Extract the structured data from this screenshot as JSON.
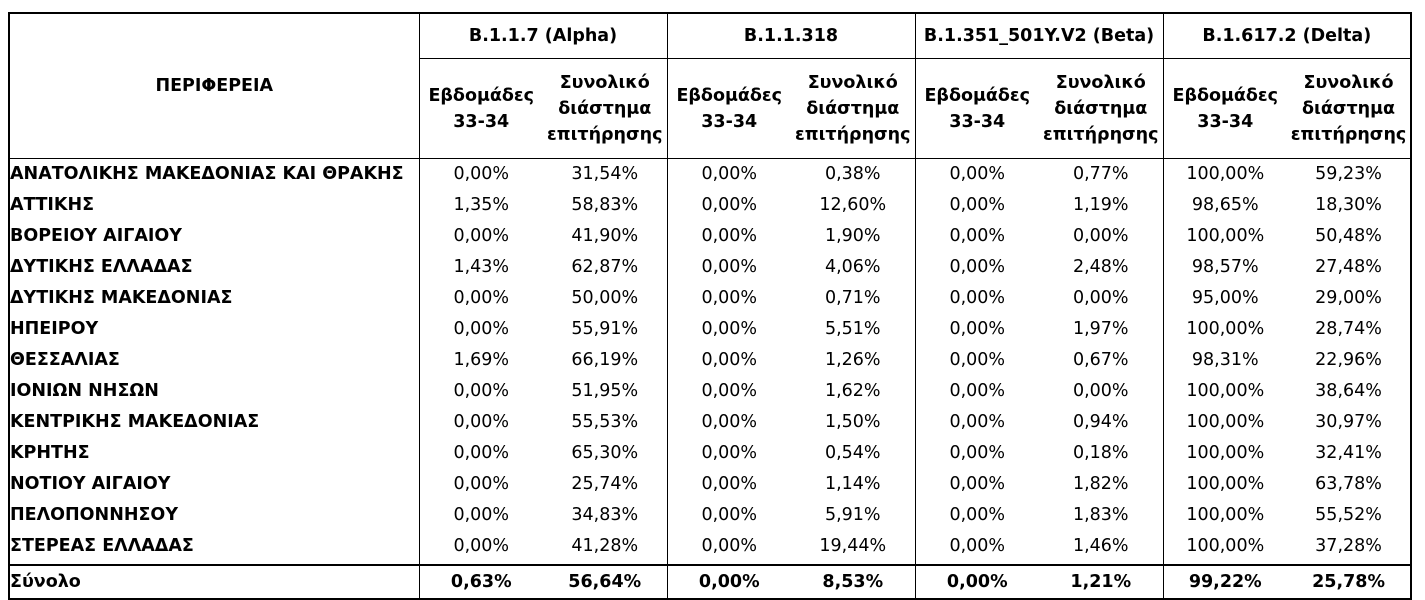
{
  "header": {
    "region_label": "ΠΕΡΙΦΕΡΕΙΑ",
    "variants": [
      "B.1.1.7 (Alpha)",
      "B.1.1.318",
      "B.1.351_501Y.V2 (Beta)",
      "B.1.617.2 (Delta)"
    ],
    "sub_weeks": [
      "Εβδομάδες",
      "33-34"
    ],
    "sub_total": [
      "Συνολικό",
      "διάστημα",
      "επιτήρησης"
    ]
  },
  "rows": [
    {
      "region": "ΑΝΑΤΟΛΙΚΗΣ ΜΑΚΕΔΟΝΙΑΣ ΚΑΙ ΘΡΑΚΗΣ",
      "values": [
        "0,00%",
        "31,54%",
        "0,00%",
        "0,38%",
        "0,00%",
        "0,77%",
        "100,00%",
        "59,23%"
      ]
    },
    {
      "region": "ΑΤΤΙΚΗΣ",
      "values": [
        "1,35%",
        "58,83%",
        "0,00%",
        "12,60%",
        "0,00%",
        "1,19%",
        "98,65%",
        "18,30%"
      ]
    },
    {
      "region": "ΒΟΡΕΙΟΥ ΑΙΓΑΙΟΥ",
      "values": [
        "0,00%",
        "41,90%",
        "0,00%",
        "1,90%",
        "0,00%",
        "0,00%",
        "100,00%",
        "50,48%"
      ]
    },
    {
      "region": "ΔΥΤΙΚΗΣ ΕΛΛΑΔΑΣ",
      "values": [
        "1,43%",
        "62,87%",
        "0,00%",
        "4,06%",
        "0,00%",
        "2,48%",
        "98,57%",
        "27,48%"
      ]
    },
    {
      "region": "ΔΥΤΙΚΗΣ ΜΑΚΕΔΟΝΙΑΣ",
      "values": [
        "0,00%",
        "50,00%",
        "0,00%",
        "0,71%",
        "0,00%",
        "0,00%",
        "95,00%",
        "29,00%"
      ]
    },
    {
      "region": "ΗΠΕΙΡΟΥ",
      "values": [
        "0,00%",
        "55,91%",
        "0,00%",
        "5,51%",
        "0,00%",
        "1,97%",
        "100,00%",
        "28,74%"
      ]
    },
    {
      "region": "ΘΕΣΣΑΛΙΑΣ",
      "values": [
        "1,69%",
        "66,19%",
        "0,00%",
        "1,26%",
        "0,00%",
        "0,67%",
        "98,31%",
        "22,96%"
      ]
    },
    {
      "region": "ΙΟΝΙΩΝ ΝΗΣΩΝ",
      "values": [
        "0,00%",
        "51,95%",
        "0,00%",
        "1,62%",
        "0,00%",
        "0,00%",
        "100,00%",
        "38,64%"
      ]
    },
    {
      "region": "ΚΕΝΤΡΙΚΗΣ ΜΑΚΕΔΟΝΙΑΣ",
      "values": [
        "0,00%",
        "55,53%",
        "0,00%",
        "1,50%",
        "0,00%",
        "0,94%",
        "100,00%",
        "30,97%"
      ]
    },
    {
      "region": "ΚΡΗΤΗΣ",
      "values": [
        "0,00%",
        "65,30%",
        "0,00%",
        "0,54%",
        "0,00%",
        "0,18%",
        "100,00%",
        "32,41%"
      ]
    },
    {
      "region": "ΝΟΤΙΟΥ ΑΙΓΑΙΟΥ",
      "values": [
        "0,00%",
        "25,74%",
        "0,00%",
        "1,14%",
        "0,00%",
        "1,82%",
        "100,00%",
        "63,78%"
      ]
    },
    {
      "region": "ΠΕΛΟΠΟΝΝΗΣΟΥ",
      "values": [
        "0,00%",
        "34,83%",
        "0,00%",
        "5,91%",
        "0,00%",
        "1,83%",
        "100,00%",
        "55,52%"
      ]
    },
    {
      "region": "ΣΤΕΡΕΑΣ ΕΛΛΑΔΑΣ",
      "values": [
        "0,00%",
        "41,28%",
        "0,00%",
        "19,44%",
        "0,00%",
        "1,46%",
        "100,00%",
        "37,28%"
      ]
    }
  ],
  "total": {
    "label": "Σύνολο",
    "values": [
      "0,63%",
      "56,64%",
      "0,00%",
      "8,53%",
      "0,00%",
      "1,21%",
      "99,22%",
      "25,78%"
    ]
  }
}
